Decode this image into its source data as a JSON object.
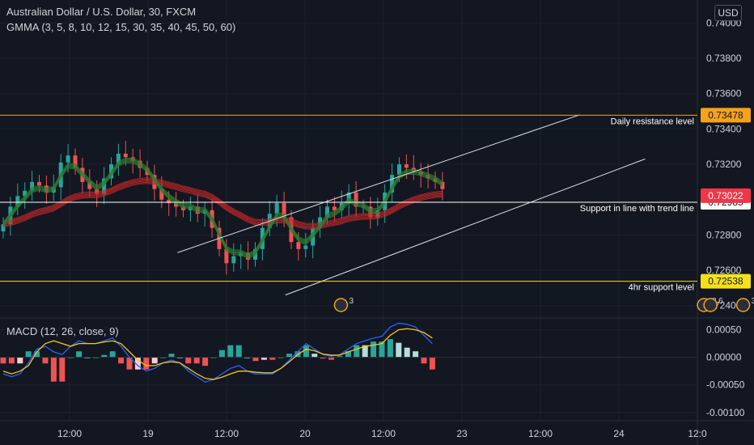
{
  "legend": {
    "symbol": "Australian Dollar / U.S. Dollar, 30, FXCM",
    "gmma": "GMMA (3, 5, 8, 10, 12, 15, 30, 35, 40, 45, 50, 60)",
    "macd": "MACD (12, 26, close, 9)"
  },
  "currency_button": "USD",
  "events": [
    {
      "label": "3",
      "x_time": "20 05:30"
    },
    {
      "label": "3",
      "x_time": "22 13:00"
    },
    {
      "label": "6",
      "x_time": "22 14:00"
    },
    {
      "label": "3",
      "x_time": "22 19:00"
    }
  ],
  "chart_data": [
    {
      "type": "candlestick",
      "title": "Australian Dollar / U.S. Dollar, 30, FXCM",
      "x_ticks": [
        "12:00",
        "19",
        "12:00",
        "20",
        "12:00",
        "23",
        "12:00",
        "24",
        "12:0"
      ],
      "y_ticks": [
        "0.74000",
        "0.73800",
        "0.73600",
        "0.73400",
        "0.73200",
        "0.72800",
        "0.72600",
        "0.72400"
      ],
      "ylim": [
        0.7233,
        0.7413
      ],
      "ohlc_close_path": [
        0.7286,
        0.7296,
        0.7302,
        0.7305,
        0.731,
        0.7308,
        0.7304,
        0.7307,
        0.7321,
        0.7325,
        0.7318,
        0.731,
        0.7306,
        0.7303,
        0.7312,
        0.732,
        0.7326,
        0.7324,
        0.7322,
        0.7318,
        0.7314,
        0.7306,
        0.73,
        0.7298,
        0.7296,
        0.7294,
        0.7296,
        0.7292,
        0.7294,
        0.7284,
        0.7272,
        0.7264,
        0.7268,
        0.727,
        0.7266,
        0.7272,
        0.7284,
        0.7292,
        0.7298,
        0.729,
        0.7276,
        0.7272,
        0.7274,
        0.7284,
        0.729,
        0.7296,
        0.7294,
        0.7298,
        0.7304,
        0.7296,
        0.7296,
        0.729,
        0.7294,
        0.7304,
        0.7314,
        0.732,
        0.7318,
        0.7316,
        0.7314,
        0.7312,
        0.731,
        0.7306
      ],
      "horizontal_lines": [
        {
          "price": "0.73478",
          "value": 0.73478,
          "label": "Daily resistance level",
          "color": "#f7a21b",
          "tag_bg": "#f7a21b",
          "tag_fg": "#131722"
        },
        {
          "price": "0.72985",
          "value": 0.72985,
          "label": "Support in line with trend line",
          "color": "#ffffff",
          "tag_bg": "#ffffff",
          "tag_fg": "#131722"
        },
        {
          "price": "0.72538",
          "value": 0.72538,
          "label": "4hr support level",
          "color": "#f5e11a",
          "tag_bg": "#f5e11a",
          "tag_fg": "#131722"
        }
      ],
      "last_price": {
        "price": "0.73022",
        "value": 0.73022,
        "color": "#f23645"
      },
      "trend_channel": {
        "upper": [
          {
            "time": "19 04:30",
            "price": 0.727
          },
          {
            "time": "21 18:00",
            "price": 0.7348
          }
        ],
        "lower": [
          {
            "time": "19 21:00",
            "price": 0.7246
          },
          {
            "time": "22 04:00",
            "price": 0.7323
          }
        ]
      },
      "colors": {
        "up": "#26a69a",
        "down": "#ef5350",
        "gmma_short": "#2e7d32",
        "gmma_long": "#c62828"
      }
    },
    {
      "type": "macd",
      "title": "MACD (12, 26, close, 9)",
      "y_ticks": [
        "0.00050",
        "0.00000",
        "-0.00050",
        "-0.00100"
      ],
      "ylim": [
        -0.00115,
        0.0007
      ],
      "macd": [
        -0.0003,
        -0.00035,
        -0.0003,
        -0.0001,
        0.00015,
        0.0002,
        0.0001,
        5e-05,
        0.0002,
        0.0003,
        0.00025,
        0.00025,
        0.0003,
        0.00035,
        0.0002,
        0.0,
        -0.00015,
        -0.00025,
        -0.0002,
        -0.0001,
        -5e-05,
        -0.0001,
        -0.00025,
        -0.00035,
        -0.00045,
        -0.0004,
        -0.0003,
        -0.0002,
        -0.00015,
        -0.00025,
        -0.0003,
        -0.0003,
        -0.0003,
        -0.0002,
        -5e-05,
        0.0001,
        0.00025,
        0.00015,
        5e-05,
        2e-05,
        5e-05,
        0.00015,
        0.00025,
        0.0003,
        0.00035,
        0.00038,
        0.00055,
        0.00062,
        0.0006,
        0.00055,
        0.0004,
        0.00025
      ],
      "signal": [
        -0.00025,
        -0.0003,
        -0.00025,
        -0.00015,
        0.0001,
        0.00025,
        0.0003,
        0.00025,
        0.0002,
        0.00025,
        0.00025,
        0.00025,
        0.00028,
        0.0003,
        0.00025,
        0.0001,
        -5e-05,
        -0.00015,
        -0.00015,
        -0.0001,
        -8e-05,
        -0.0001,
        -0.0002,
        -0.0003,
        -0.00038,
        -0.0004,
        -0.00036,
        -0.0003,
        -0.00025,
        -0.00025,
        -0.00027,
        -0.00028,
        -0.00028,
        -0.0002,
        -8e-05,
        5e-05,
        0.00015,
        0.00012,
        6e-05,
        4e-05,
        4e-05,
        0.0001,
        0.00015,
        0.0002,
        0.00022,
        0.00025,
        0.0004,
        0.0005,
        0.00052,
        0.0005,
        0.00045,
        0.00035
      ],
      "histogram_color_up": "#26a69a",
      "histogram_color_down": "#ef5350",
      "histogram_color_up_light": "#b2dfdb",
      "histogram_color_down_light": "#ffcdd2",
      "macd_color": "#2962ff",
      "signal_color": "#f7c513"
    }
  ]
}
